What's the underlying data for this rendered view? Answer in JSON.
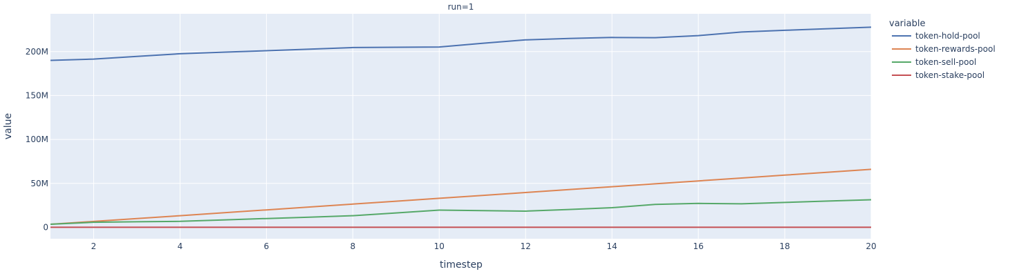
{
  "chart_data": {
    "type": "line",
    "title": "run=1",
    "xlabel": "timestep",
    "ylabel": "value",
    "xlim": [
      1,
      20
    ],
    "ylim": [
      -13000000,
      243000000
    ],
    "x_ticks": [
      2,
      4,
      6,
      8,
      10,
      12,
      14,
      16,
      18,
      20
    ],
    "x_tick_labels": [
      "2",
      "4",
      "6",
      "8",
      "10",
      "12",
      "14",
      "16",
      "18",
      "20"
    ],
    "y_ticks": [
      0,
      50000000,
      100000000,
      150000000,
      200000000
    ],
    "y_tick_labels": [
      "0",
      "50M",
      "100M",
      "150M",
      "200M"
    ],
    "legend_title": "variable",
    "legend_position": "right",
    "x": [
      1,
      2,
      3,
      4,
      5,
      6,
      7,
      8,
      9,
      10,
      11,
      12,
      13,
      14,
      15,
      16,
      17,
      18,
      19,
      20
    ],
    "series": [
      {
        "name": "token-hold-pool",
        "color": "#4c72b0",
        "values": [
          190000000,
          191500000,
          194500000,
          197500000,
          199300000,
          201000000,
          202700000,
          204600000,
          204900000,
          205200000,
          209400000,
          213300000,
          214900000,
          216100000,
          215800000,
          218200000,
          222300000,
          224200000,
          226000000,
          227800000
        ]
      },
      {
        "name": "token-rewards-pool",
        "color": "#dd8452",
        "values": [
          3500000,
          6700000,
          9900000,
          13200000,
          16500000,
          19800000,
          23100000,
          26400000,
          29700000,
          33000000,
          36300000,
          39600000,
          42900000,
          46200000,
          49500000,
          52800000,
          56100000,
          59400000,
          62700000,
          66000000
        ]
      },
      {
        "name": "token-sell-pool",
        "color": "#55a868",
        "values": [
          3500000,
          5800000,
          6300000,
          6800000,
          8400000,
          10000000,
          11600000,
          13200000,
          16400000,
          19600000,
          19000000,
          18400000,
          20300000,
          22300000,
          26100000,
          27200000,
          26700000,
          28300000,
          29900000,
          31400000
        ]
      },
      {
        "name": "token-stake-pool",
        "color": "#c44e52",
        "values": [
          0,
          0,
          0,
          0,
          0,
          0,
          0,
          0,
          0,
          0,
          0,
          0,
          0,
          0,
          0,
          0,
          0,
          0,
          0,
          0
        ]
      }
    ]
  }
}
